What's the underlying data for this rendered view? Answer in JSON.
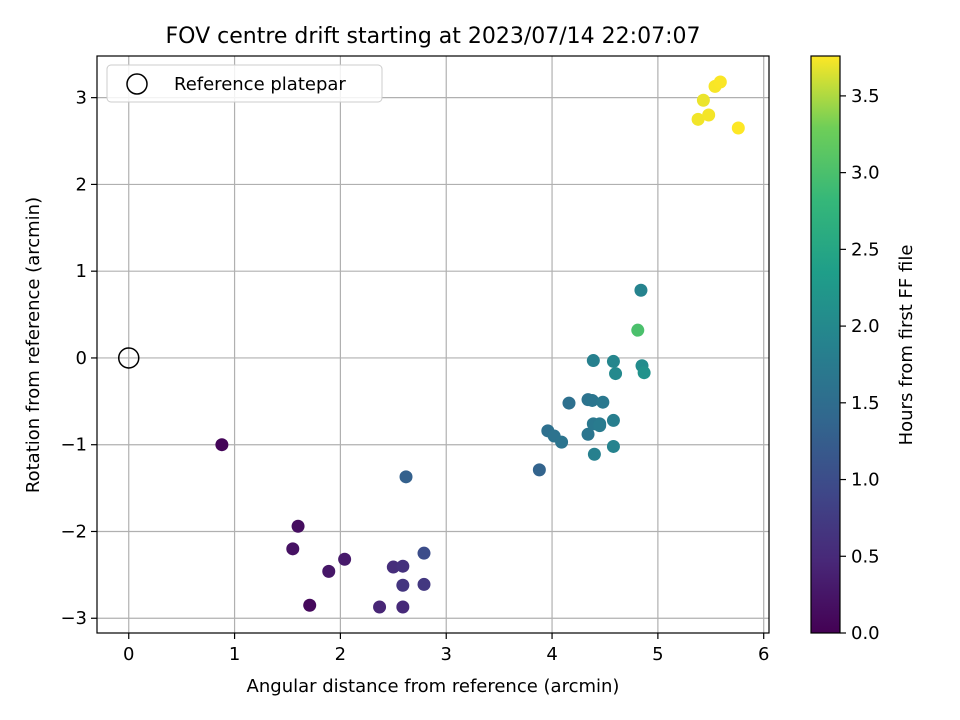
{
  "chart_data": {
    "type": "scatter",
    "title": "FOV centre drift starting at 2023/07/14 22:07:07",
    "xlabel": "Angular distance from reference (arcmin)",
    "ylabel": "Rotation from reference (arcmin)",
    "xlim": [
      -0.3,
      6.05
    ],
    "ylim": [
      -3.17,
      3.48
    ],
    "xticks": [
      0,
      1,
      2,
      3,
      4,
      5,
      6
    ],
    "xtick_labels": [
      "0",
      "1",
      "2",
      "3",
      "4",
      "5",
      "6"
    ],
    "yticks": [
      -3,
      -2,
      -1,
      0,
      1,
      2,
      3
    ],
    "ytick_labels": [
      "−3",
      "−2",
      "−1",
      "0",
      "1",
      "2",
      "3"
    ],
    "grid": true,
    "legend": {
      "position": "top-left",
      "label": "Reference platepar"
    },
    "reference_point": {
      "x": 0,
      "y": 0
    },
    "colorbar": {
      "label": "Hours from first FF file",
      "min": 0.0,
      "max": 3.76,
      "ticks": [
        0.0,
        0.5,
        1.0,
        1.5,
        2.0,
        2.5,
        3.0,
        3.5
      ],
      "tick_labels": [
        "0.0",
        "0.5",
        "1.0",
        "1.5",
        "2.0",
        "2.5",
        "3.0",
        "3.5"
      ],
      "colormap": "viridis"
    },
    "points": [
      {
        "x": 0.88,
        "y": -1.0,
        "h": 0.05
      },
      {
        "x": 1.6,
        "y": -1.94,
        "h": 0.15
      },
      {
        "x": 1.55,
        "y": -2.2,
        "h": 0.2
      },
      {
        "x": 1.89,
        "y": -2.46,
        "h": 0.25
      },
      {
        "x": 2.04,
        "y": -2.32,
        "h": 0.3
      },
      {
        "x": 1.71,
        "y": -2.85,
        "h": 0.1
      },
      {
        "x": 2.37,
        "y": -2.87,
        "h": 0.45
      },
      {
        "x": 2.5,
        "y": -2.41,
        "h": 0.55
      },
      {
        "x": 2.59,
        "y": -2.4,
        "h": 0.6
      },
      {
        "x": 2.59,
        "y": -2.62,
        "h": 0.65
      },
      {
        "x": 2.59,
        "y": -2.87,
        "h": 0.5
      },
      {
        "x": 2.79,
        "y": -2.61,
        "h": 0.7
      },
      {
        "x": 2.79,
        "y": -2.25,
        "h": 1.0
      },
      {
        "x": 2.62,
        "y": -1.37,
        "h": 1.3
      },
      {
        "x": 3.88,
        "y": -1.29,
        "h": 1.35
      },
      {
        "x": 3.96,
        "y": -0.84,
        "h": 1.55
      },
      {
        "x": 4.02,
        "y": -0.9,
        "h": 1.6
      },
      {
        "x": 4.09,
        "y": -0.97,
        "h": 1.62
      },
      {
        "x": 4.16,
        "y": -0.52,
        "h": 1.55
      },
      {
        "x": 4.34,
        "y": -0.48,
        "h": 1.6
      },
      {
        "x": 4.38,
        "y": -0.49,
        "h": 1.65
      },
      {
        "x": 4.34,
        "y": -0.88,
        "h": 1.65
      },
      {
        "x": 4.39,
        "y": -0.76,
        "h": 1.7
      },
      {
        "x": 4.45,
        "y": -0.76,
        "h": 1.72
      },
      {
        "x": 4.48,
        "y": -0.51,
        "h": 1.7
      },
      {
        "x": 4.45,
        "y": -0.78,
        "h": 1.75
      },
      {
        "x": 4.58,
        "y": -0.72,
        "h": 1.8
      },
      {
        "x": 4.4,
        "y": -1.11,
        "h": 1.85
      },
      {
        "x": 4.58,
        "y": -1.02,
        "h": 1.9
      },
      {
        "x": 4.39,
        "y": -0.03,
        "h": 1.85
      },
      {
        "x": 4.58,
        "y": -0.04,
        "h": 1.95
      },
      {
        "x": 4.6,
        "y": -0.18,
        "h": 2.0
      },
      {
        "x": 4.85,
        "y": -0.09,
        "h": 2.05
      },
      {
        "x": 4.87,
        "y": -0.17,
        "h": 2.15
      },
      {
        "x": 4.84,
        "y": 0.78,
        "h": 1.9
      },
      {
        "x": 4.81,
        "y": 0.32,
        "h": 3.0
      },
      {
        "x": 5.38,
        "y": 2.75,
        "h": 3.72
      },
      {
        "x": 5.43,
        "y": 2.97,
        "h": 3.7
      },
      {
        "x": 5.48,
        "y": 2.8,
        "h": 3.73
      },
      {
        "x": 5.54,
        "y": 3.13,
        "h": 3.74
      },
      {
        "x": 5.59,
        "y": 3.18,
        "h": 3.75
      },
      {
        "x": 5.76,
        "y": 2.65,
        "h": 3.76
      }
    ]
  }
}
